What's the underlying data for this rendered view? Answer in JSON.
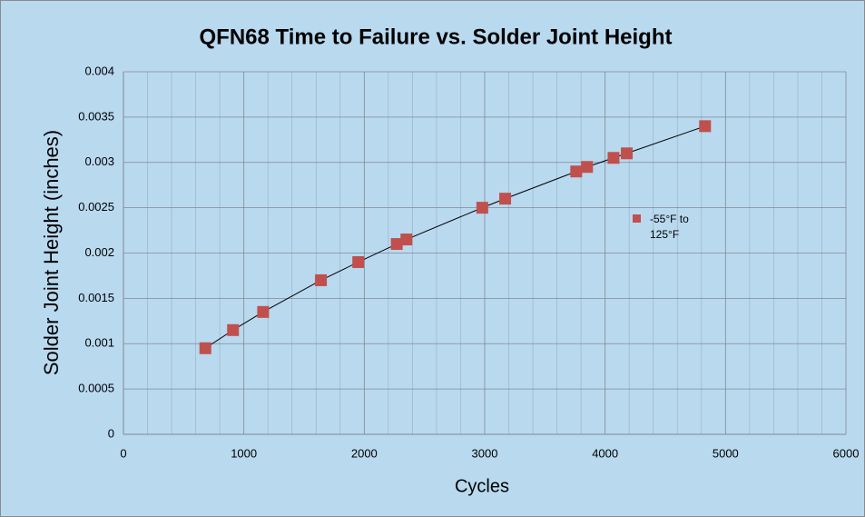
{
  "chart_data": {
    "type": "scatter",
    "title": "QFN68 Time to Failure vs. Solder Joint Height",
    "x_label": "Cycles",
    "y_label": "Solder Joint Height (inches)",
    "series": [
      {
        "name": "-55°F to 125°F",
        "color": "#c0504d",
        "x": [
          680,
          910,
          1160,
          1640,
          1950,
          2270,
          2350,
          2980,
          3170,
          3760,
          3850,
          4070,
          4180,
          4830
        ],
        "values": [
          0.00095,
          0.00115,
          0.00135,
          0.0017,
          0.0019,
          0.0021,
          0.00215,
          0.0025,
          0.0026,
          0.0029,
          0.00295,
          0.00305,
          0.0031,
          0.0034
        ]
      }
    ],
    "xlim": [
      0,
      6000
    ],
    "xticks": [
      0,
      1000,
      2000,
      3000,
      4000,
      5000,
      6000
    ],
    "ylim": [
      0,
      0.004
    ],
    "yticks": [
      0,
      0.0005,
      0.001,
      0.0015,
      0.002,
      0.0025,
      0.003,
      0.0035,
      0.004
    ],
    "grid": true,
    "trendline": true,
    "legend": "right"
  }
}
